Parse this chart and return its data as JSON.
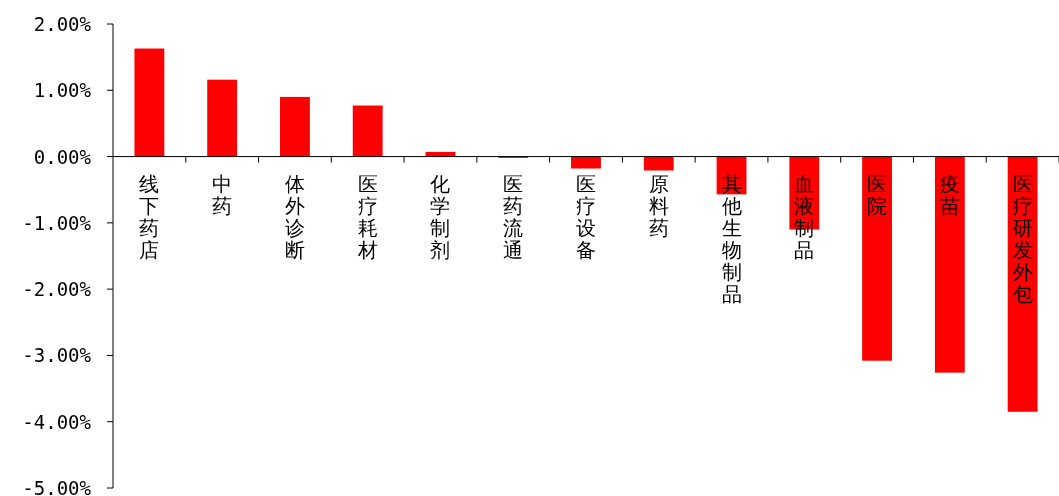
{
  "chart_data": {
    "type": "bar",
    "categories": [
      "线下药店",
      "中药",
      "体外诊断",
      "医疗耗材",
      "化学制剂",
      "医药流通",
      "医疗设备",
      "原料药",
      "其他生物制品",
      "血液制品",
      "医院",
      "疫苗",
      "医疗研发外包"
    ],
    "values": [
      1.63,
      1.16,
      0.9,
      0.77,
      0.07,
      -0.02,
      -0.18,
      -0.21,
      -0.57,
      -1.1,
      -3.08,
      -3.26,
      -3.85
    ],
    "color": "#ff0000",
    "ylim": [
      -5,
      2
    ],
    "yticks": [
      {
        "value": 2,
        "label": "2.00%"
      },
      {
        "value": 1,
        "label": "1.00%"
      },
      {
        "value": 0,
        "label": "0.00%"
      },
      {
        "value": -1,
        "label": "-1.00%"
      },
      {
        "value": -2,
        "label": "-2.00%"
      },
      {
        "value": -3,
        "label": "-3.00%"
      },
      {
        "value": -4,
        "label": "-4.00%"
      },
      {
        "value": -5,
        "label": "-5.00%"
      }
    ]
  }
}
